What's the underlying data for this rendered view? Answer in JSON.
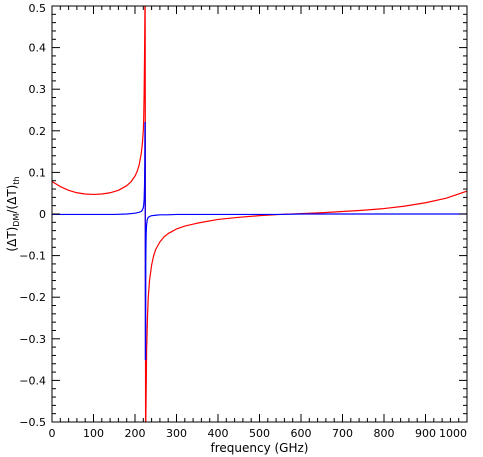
{
  "chart_data": {
    "type": "line",
    "title": "",
    "xlabel": "frequency (GHz)",
    "ylabel_parts": {
      "num": "(ΔT)",
      "num_sub": "DM",
      "sep": "/",
      "den": "(ΔT)",
      "den_sub": "th"
    },
    "xlim": [
      0,
      1000
    ],
    "ylim": [
      -0.5,
      0.5
    ],
    "x_ticks": [
      0,
      100,
      200,
      300,
      400,
      500,
      600,
      700,
      800,
      900,
      1000
    ],
    "x_tick_labels": [
      "0",
      "100",
      "200",
      "300",
      "400",
      "500",
      "600",
      "700",
      "800",
      "900",
      "1000"
    ],
    "y_ticks": [
      -0.5,
      -0.4,
      -0.3,
      -0.2,
      -0.1,
      0,
      0.1,
      0.2,
      0.3,
      0.4,
      0.5
    ],
    "y_tick_labels": [
      "−0.5",
      "−0.4",
      "−0.3",
      "−0.2",
      "−0.1",
      "0",
      "0.1",
      "0.2",
      "0.3",
      "0.4",
      "0.5"
    ],
    "grid": false,
    "legend": "none",
    "series": [
      {
        "color": "#ff0000",
        "x": [
          0,
          20,
          40,
          60,
          80,
          100,
          120,
          140,
          160,
          180,
          190,
          200,
          205,
          210,
          215,
          218,
          220,
          221,
          222,
          223,
          224,
          224.5,
          225.5,
          226,
          227,
          228,
          230,
          232,
          235,
          240,
          245,
          250,
          260,
          270,
          280,
          300,
          320,
          350,
          400,
          450,
          500,
          550,
          600,
          650,
          700,
          750,
          800,
          850,
          900,
          950,
          1000
        ],
        "y": [
          0.078,
          0.066,
          0.057,
          0.051,
          0.048,
          0.047,
          0.048,
          0.051,
          0.057,
          0.068,
          0.077,
          0.091,
          0.102,
          0.118,
          0.145,
          0.172,
          0.2,
          0.23,
          0.29,
          0.38,
          0.5,
          0.5,
          -0.5,
          -0.5,
          -0.42,
          -0.33,
          -0.25,
          -0.2,
          -0.16,
          -0.123,
          -0.1,
          -0.085,
          -0.067,
          -0.055,
          -0.047,
          -0.036,
          -0.029,
          -0.022,
          -0.013,
          -0.008,
          -0.004,
          -0.001,
          0.001,
          0.003,
          0.006,
          0.009,
          0.013,
          0.019,
          0.027,
          0.038,
          0.055
        ]
      },
      {
        "color": "#0000ff",
        "x": [
          0,
          50,
          100,
          150,
          180,
          200,
          210,
          215,
          218,
          220,
          221,
          222,
          223,
          223.5,
          224,
          224.5,
          225,
          225.5,
          226,
          226.5,
          227,
          228,
          229,
          230,
          232,
          235,
          240,
          250,
          260,
          280,
          300,
          350,
          400,
          450,
          500,
          550,
          600,
          650,
          700,
          750,
          800,
          850,
          900,
          950,
          1000
        ],
        "y": [
          -0.001,
          -0.001,
          -0.001,
          -0.001,
          0,
          0.002,
          0.004,
          0.006,
          0.01,
          0.015,
          0.022,
          0.035,
          0.07,
          0.12,
          0.22,
          0.22,
          -0.35,
          -0.35,
          -0.12,
          -0.07,
          -0.045,
          -0.025,
          -0.017,
          -0.012,
          -0.008,
          -0.006,
          -0.004,
          -0.003,
          -0.002,
          -0.002,
          -0.001,
          -0.001,
          -0.001,
          -0.001,
          -0.001,
          -0.001,
          0,
          0,
          0,
          0,
          0,
          0,
          0,
          0,
          0
        ]
      }
    ]
  }
}
